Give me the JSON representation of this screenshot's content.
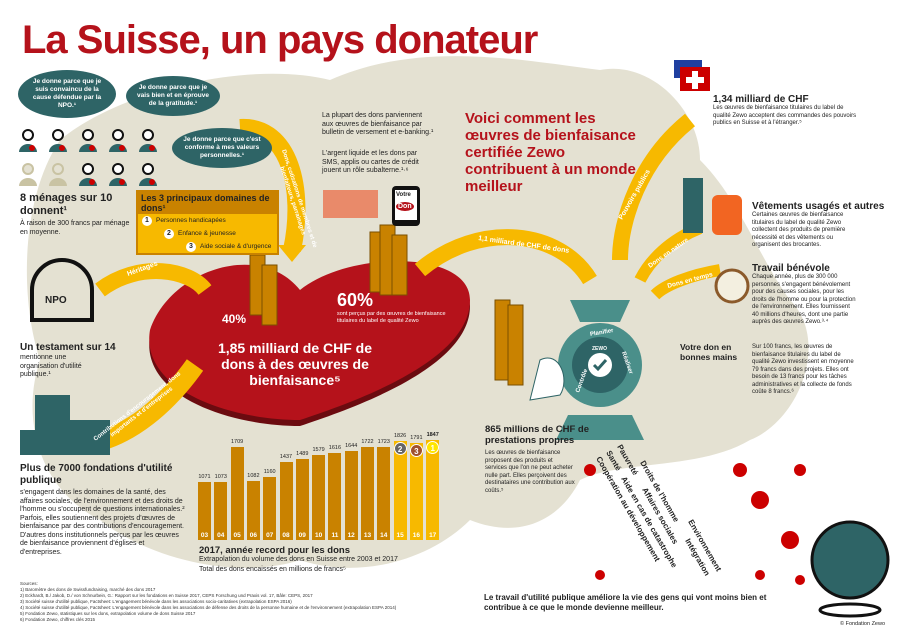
{
  "title": "La Suisse, un pays donateur",
  "colors": {
    "accent_red": "#b5121b",
    "gold": "#c98200",
    "yellow": "#f7b900",
    "teal": "#2e6466",
    "beige": "#e4e1d2"
  },
  "quotes": [
    "Je donne parce que je suis convaincu de la cause défendue par la NPO.¹",
    "Je donne parce que je vais bien et en éprouve de la gratitude.¹",
    "Je donne parce que c'est conforme à mes valeurs personnelles.¹"
  ],
  "households": {
    "heading": "8 ménages sur 10 donnent¹",
    "text": "À raison de 300 francs par ménage en moyenne.",
    "donors": 8,
    "total": 10
  },
  "domains": {
    "heading": "Les 3 principaux domaines de dons¹",
    "items": [
      {
        "n": "1",
        "label": "Personnes handicapées"
      },
      {
        "n": "2",
        "label": "Enfance & jeunesse"
      },
      {
        "n": "3",
        "label": "Aide sociale & d'urgence"
      }
    ]
  },
  "payment": {
    "text1": "La plupart des dons parviennent aux œuvres de bienfaisance par bulletin de versement et e-banking.¹",
    "text2": "L'argent liquide et les dons par SMS, applis ou cartes de crédit jouent un rôle subalterne.¹·⁶",
    "phone_line1": "Votre",
    "phone_line2": "Don"
  },
  "headline": "Voici comment les œuvres de bienfaisance certifiée Zewo contribuent à un monde meilleur",
  "arrows": {
    "dons": "Dons, cotisations de membres et de bienfaiteurs, parrainages",
    "heritages": "Héritages",
    "contributions": "Contributions d'encouragement, dons importants et d'entreprises",
    "milliard": "1,1 milliard de CHF de dons",
    "pouvoirs": "Pouvoirs publics",
    "nature": "Dons en nature",
    "temps": "Dons en temps"
  },
  "heart": {
    "pct40": "40%",
    "pct60": "60%",
    "pct60_text": "sont perçus par des œuvres de bienfaisance titulaires du label de qualité Zewo",
    "main": "1,85 milliard de CHF de dons à des œuvres de bienfaisance⁵"
  },
  "testament": {
    "stone": "NPO",
    "heading": "Un testament sur 14",
    "text": "mentionne une organisation d'utilité publique.¹"
  },
  "foundations": {
    "heading": "Plus de 7000 fondations d'utilité publique",
    "text": "s'engagent dans les domaines de la santé, des affaires sociales, de l'environnement et des droits de l'homme ou s'occupent de questions internationales.² Parfois, elles soutiennent des projets d'œuvres de bienfaisance par des contributions d'encouragement. D'autres dons institutionnels perçus par les œuvres de bienfaisance proviennent d'églises et d'entreprises."
  },
  "chart_data": {
    "type": "bar",
    "title": "2017, année record pour les dons",
    "subtitle": "Extrapolation du volume des dons en Suisse entre 2003 et 2017",
    "ylabel": "Total des dons encaissés en millions de francs⁵",
    "categories": [
      "03",
      "04",
      "05",
      "06",
      "07",
      "08",
      "09",
      "10",
      "11",
      "12",
      "13",
      "14",
      "15",
      "16",
      "17"
    ],
    "values": [
      1071,
      1073,
      1709,
      1082,
      1160,
      1437,
      1489,
      1579,
      1616,
      1644,
      1722,
      1723,
      1826,
      1791,
      1847
    ],
    "ranks": {
      "15": "2",
      "16": "3",
      "17": "1"
    },
    "grid": false
  },
  "public": {
    "heading": "1,34 milliard de CHF",
    "text": "Les œuvres de bienfaisance titulaires du label de qualité Zewo acceptent des commandes des pouvoirs publics en Suisse et à l'étranger.⁵"
  },
  "clothes": {
    "heading": "Vêtements usagés et autres",
    "text": "Certaines œuvres de bienfaisance titulaires du label de qualité Zewo collectent des produits de première nécessité et des vêtements ou organisent des brocantes."
  },
  "volunteer": {
    "heading": "Travail bénévole",
    "text": "Chaque année, plus de 300 000 personnes s'engagent bénévolement pour des causes sociales, pour les droits de l'homme ou pour la protection de l'environnement. Elles fournissent 40 millions d'heures, dont une partie auprès des œuvres Zewo.³·⁴"
  },
  "hands": {
    "heading": "Votre don en bonnes mains",
    "text": "Sur 100 francs, les œuvres de bienfaisance titulaires du label de qualité Zewo investissent en moyenne 79 francs dans des projets. Elles ont besoin de 13 francs pour les tâches administratives et la collecte de fonds coûte 8 francs.⁶"
  },
  "gear": {
    "controle": "Contrôle",
    "planifier": "Planifier",
    "realiser": "Réaliser",
    "zewo": "ZEWO"
  },
  "services": {
    "heading": "865 millions de CHF de prestations propres",
    "text": "Les œuvres de bienfaisance proposent des produits et services que l'on ne peut acheter nulle part. Elles perçoivent des destinataires une contribution aux coûts.⁵"
  },
  "causes": [
    "Coopération au développement",
    "Santé",
    "Aide en cas de catastrophe",
    "Pauvreté",
    "Affaires sociales",
    "Environnement",
    "Droits de l'homme",
    "Intégration"
  ],
  "closing": "Le travail d'utilité publique améliore la vie des gens qui vont moins bien et contribue à ce que le monde devienne meilleur.",
  "sources": {
    "label": "Sources:",
    "items": [
      "1) Baromètre des dons de Swissfundraising, marché des dons 2017",
      "2) Eckhardt, B./ Jakob, D./ von Schnurbein, G.: Rapport sur les fondations en Suisse 2017, CEPS Forschung und Praxis vol. 17, Bâle: CEPS, 2017",
      "3) Société suisse d'utilité publique, Factsheet: L'engagement bénévole dans les associations socio-caritatives (extrapolation ESPA 2016)",
      "4) Société suisse d'utilité publique, Factsheet: L'engagement bénévole dans les associations de défense des droits de la personne humaine et de l'environnement (extrapolation ESPA 2014)",
      "5) Fondation Zewo, statistiques sur les dons, extrapolation volume de dons Suisse 2017",
      "6) Fondation Zewo, chiffres clés 2015"
    ]
  },
  "copyright": "© Fondation Zewo"
}
